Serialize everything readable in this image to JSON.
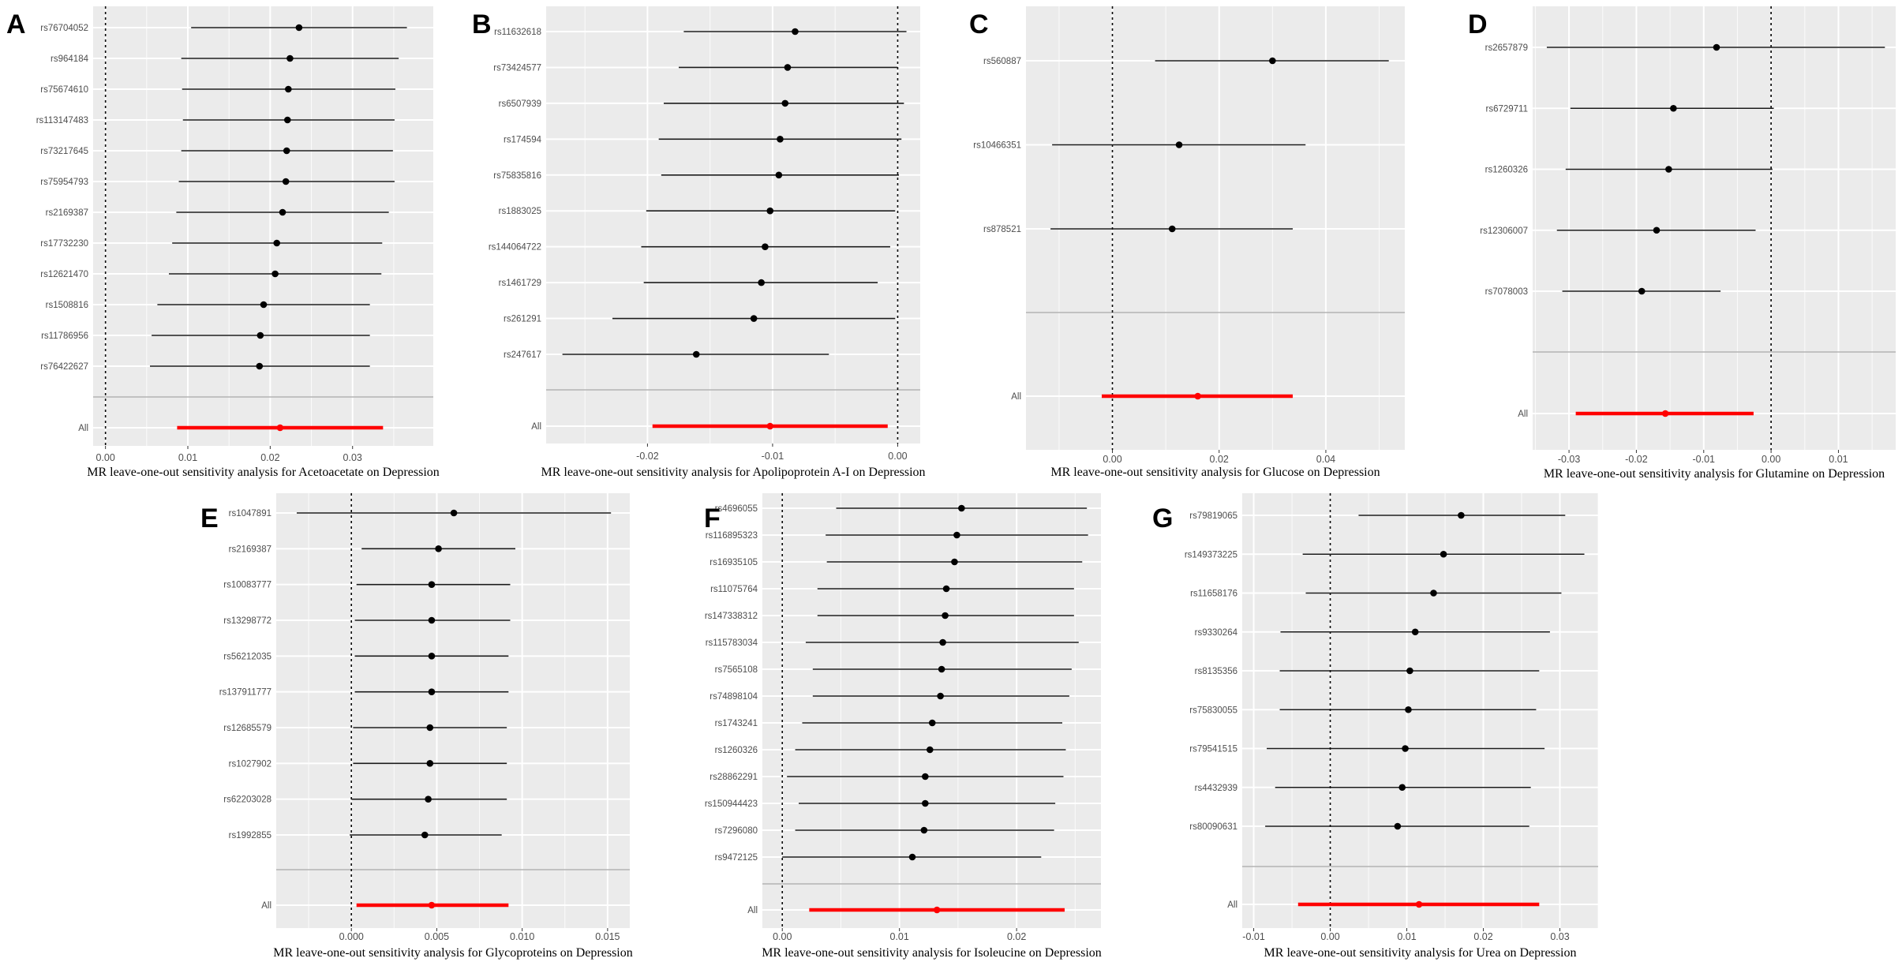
{
  "chart_data": [
    {
      "panel": "A",
      "type": "forest",
      "xlabel": "MR leave-one-out sensitivity analysis for Acetoacetate on Depression",
      "xlim": [
        -0.0015,
        0.0398
      ],
      "xticks": [
        0.0,
        0.01,
        0.02,
        0.03
      ],
      "xtick_labels": [
        "0.00",
        "0.01",
        "0.02",
        "0.03"
      ],
      "snps": [
        {
          "label": "rs76704052",
          "b": 0.0235,
          "lo": 0.0104,
          "hi": 0.0366
        },
        {
          "label": "rs964184",
          "b": 0.0224,
          "lo": 0.0092,
          "hi": 0.0356
        },
        {
          "label": "rs75674610",
          "b": 0.0222,
          "lo": 0.0093,
          "hi": 0.0352
        },
        {
          "label": "rs113147483",
          "b": 0.0221,
          "lo": 0.0094,
          "hi": 0.0351
        },
        {
          "label": "rs73217645",
          "b": 0.022,
          "lo": 0.0092,
          "hi": 0.0349
        },
        {
          "label": "rs75954793",
          "b": 0.0219,
          "lo": 0.0089,
          "hi": 0.0351
        },
        {
          "label": "rs2169387",
          "b": 0.0215,
          "lo": 0.0086,
          "hi": 0.0344
        },
        {
          "label": "rs17732230",
          "b": 0.0208,
          "lo": 0.0081,
          "hi": 0.0336
        },
        {
          "label": "rs12621470",
          "b": 0.0206,
          "lo": 0.0077,
          "hi": 0.0335
        },
        {
          "label": "rs1508816",
          "b": 0.0192,
          "lo": 0.0063,
          "hi": 0.0321
        },
        {
          "label": "rs11786956",
          "b": 0.0188,
          "lo": 0.0056,
          "hi": 0.0321
        },
        {
          "label": "rs76422627",
          "b": 0.0187,
          "lo": 0.0054,
          "hi": 0.0321
        }
      ],
      "overall": {
        "label": "All",
        "b": 0.0212,
        "lo": 0.0087,
        "hi": 0.0337
      }
    },
    {
      "panel": "B",
      "type": "forest",
      "xlabel": "MR leave-one-out sensitivity analysis for Apolipoprotein A-I on Depression",
      "xlim": [
        -0.0281,
        0.0018
      ],
      "xticks": [
        -0.02,
        -0.01,
        0.0
      ],
      "xtick_labels": [
        "-0.02",
        "-0.01",
        "0.00"
      ],
      "snps": [
        {
          "label": "rs11632618",
          "b": -0.0082,
          "lo": -0.0171,
          "hi": 0.0007
        },
        {
          "label": "rs73424577",
          "b": -0.0088,
          "lo": -0.0175,
          "hi": 0.0
        },
        {
          "label": "rs6507939",
          "b": -0.009,
          "lo": -0.0187,
          "hi": 0.0005
        },
        {
          "label": "rs174594",
          "b": -0.0094,
          "lo": -0.0191,
          "hi": 0.0003
        },
        {
          "label": "rs75835816",
          "b": -0.0095,
          "lo": -0.0189,
          "hi": 0.0001
        },
        {
          "label": "rs1883025",
          "b": -0.0102,
          "lo": -0.0201,
          "hi": -0.0002
        },
        {
          "label": "rs144064722",
          "b": -0.0106,
          "lo": -0.0205,
          "hi": -0.0006
        },
        {
          "label": "rs1461729",
          "b": -0.0109,
          "lo": -0.0203,
          "hi": -0.0016
        },
        {
          "label": "rs261291",
          "b": -0.0115,
          "lo": -0.0228,
          "hi": -0.0002
        },
        {
          "label": "rs247617",
          "b": -0.0161,
          "lo": -0.0268,
          "hi": -0.0055
        }
      ],
      "overall": {
        "label": "All",
        "b": -0.0102,
        "lo": -0.0196,
        "hi": -0.0008
      }
    },
    {
      "panel": "C",
      "type": "forest",
      "xlabel": "MR leave-one-out sensitivity analysis for Glucose on Depression",
      "xlim": [
        -0.0162,
        0.0548
      ],
      "xticks": [
        0.0,
        0.02,
        0.04
      ],
      "xtick_labels": [
        "0.00",
        "0.02",
        "0.04"
      ],
      "snps": [
        {
          "label": "rs560887",
          "b": 0.03,
          "lo": 0.008,
          "hi": 0.0518
        },
        {
          "label": "rs10466351",
          "b": 0.0125,
          "lo": -0.0113,
          "hi": 0.0362
        },
        {
          "label": "rs878521",
          "b": 0.0112,
          "lo": -0.0116,
          "hi": 0.0338
        }
      ],
      "overall": {
        "label": "All",
        "b": 0.016,
        "lo": -0.002,
        "hi": 0.0338
      }
    },
    {
      "panel": "D",
      "type": "forest",
      "xlabel": "MR leave-one-out sensitivity analysis for Glutamine on Depression",
      "xlim": [
        -0.0354,
        0.0185
      ],
      "xticks": [
        -0.03,
        -0.02,
        -0.01,
        0.0,
        0.01
      ],
      "xtick_labels": [
        "-0.03",
        "-0.02",
        "-0.01",
        "0.00",
        "0.01"
      ],
      "snps": [
        {
          "label": "rs2657879",
          "b": -0.0081,
          "lo": -0.0333,
          "hi": 0.0169
        },
        {
          "label": "rs6729711",
          "b": -0.0145,
          "lo": -0.0298,
          "hi": 0.0004
        },
        {
          "label": "rs1260326",
          "b": -0.0152,
          "lo": -0.0305,
          "hi": 0.0002
        },
        {
          "label": "rs12306007",
          "b": -0.017,
          "lo": -0.0318,
          "hi": -0.0023
        },
        {
          "label": "rs7078003",
          "b": -0.0192,
          "lo": -0.031,
          "hi": -0.0075
        }
      ],
      "overall": {
        "label": "All",
        "b": -0.0157,
        "lo": -0.029,
        "hi": -0.0026
      }
    },
    {
      "panel": "E",
      "type": "forest",
      "xlabel": "MR leave-one-out sensitivity analysis for Glycoproteins on Depression",
      "xlim": [
        -0.0044,
        0.0163
      ],
      "xticks": [
        0.0,
        0.005,
        0.01,
        0.015
      ],
      "xtick_labels": [
        "0.000",
        "0.005",
        "0.010",
        "0.015"
      ],
      "snps": [
        {
          "label": "rs1047891",
          "b": 0.006,
          "lo": -0.0032,
          "hi": 0.0152
        },
        {
          "label": "rs2169387",
          "b": 0.0051,
          "lo": 0.0006,
          "hi": 0.0096
        },
        {
          "label": "rs10083777",
          "b": 0.0047,
          "lo": 0.0003,
          "hi": 0.0093
        },
        {
          "label": "rs13298772",
          "b": 0.0047,
          "lo": 0.0002,
          "hi": 0.0093
        },
        {
          "label": "rs56212035",
          "b": 0.0047,
          "lo": 0.0002,
          "hi": 0.0092
        },
        {
          "label": "rs137911777",
          "b": 0.0047,
          "lo": 0.0002,
          "hi": 0.0092
        },
        {
          "label": "rs12685579",
          "b": 0.0046,
          "lo": 0.0001,
          "hi": 0.0091
        },
        {
          "label": "rs1027902",
          "b": 0.0046,
          "lo": 0.0001,
          "hi": 0.0091
        },
        {
          "label": "rs62203028",
          "b": 0.0045,
          "lo": 0.0,
          "hi": 0.0091
        },
        {
          "label": "rs1992855",
          "b": 0.0043,
          "lo": -0.0001,
          "hi": 0.0088
        }
      ],
      "overall": {
        "label": "All",
        "b": 0.0047,
        "lo": 0.0003,
        "hi": 0.0092
      }
    },
    {
      "panel": "F",
      "type": "forest",
      "xlabel": "MR leave-one-out sensitivity analysis for Isoleucine on Depression",
      "xlim": [
        -0.0017,
        0.0272
      ],
      "xticks": [
        0.0,
        0.01,
        0.02
      ],
      "xtick_labels": [
        "0.00",
        "0.01",
        "0.02"
      ],
      "snps": [
        {
          "label": "rs4696055",
          "b": 0.0153,
          "lo": 0.0046,
          "hi": 0.026
        },
        {
          "label": "rs116895323",
          "b": 0.0149,
          "lo": 0.0037,
          "hi": 0.0261
        },
        {
          "label": "rs16935105",
          "b": 0.0147,
          "lo": 0.0038,
          "hi": 0.0256
        },
        {
          "label": "rs11075764",
          "b": 0.014,
          "lo": 0.003,
          "hi": 0.0249
        },
        {
          "label": "rs147338312",
          "b": 0.0139,
          "lo": 0.003,
          "hi": 0.0249
        },
        {
          "label": "rs115783034",
          "b": 0.0137,
          "lo": 0.002,
          "hi": 0.0253
        },
        {
          "label": "rs7565108",
          "b": 0.0136,
          "lo": 0.0026,
          "hi": 0.0247
        },
        {
          "label": "rs74898104",
          "b": 0.0135,
          "lo": 0.0026,
          "hi": 0.0245
        },
        {
          "label": "rs1743241",
          "b": 0.0128,
          "lo": 0.0017,
          "hi": 0.0239
        },
        {
          "label": "rs1260326",
          "b": 0.0126,
          "lo": 0.0011,
          "hi": 0.0242
        },
        {
          "label": "rs28862291",
          "b": 0.0122,
          "lo": 0.0004,
          "hi": 0.024
        },
        {
          "label": "rs150944423",
          "b": 0.0122,
          "lo": 0.0014,
          "hi": 0.0233
        },
        {
          "label": "rs7296080",
          "b": 0.0121,
          "lo": 0.0011,
          "hi": 0.0232
        },
        {
          "label": "rs9472125",
          "b": 0.0111,
          "lo": 0.0,
          "hi": 0.0221
        }
      ],
      "overall": {
        "label": "All",
        "b": 0.0132,
        "lo": 0.0023,
        "hi": 0.0241
      }
    },
    {
      "panel": "G",
      "type": "forest",
      "xlabel": "MR leave-one-out sensitivity analysis for Urea on Depression",
      "xlim": [
        -0.0115,
        0.035
      ],
      "xticks": [
        -0.01,
        0.0,
        0.01,
        0.02,
        0.03
      ],
      "xtick_labels": [
        "-0.01",
        "0.00",
        "0.01",
        "0.02",
        "0.03"
      ],
      "snps": [
        {
          "label": "rs79819065",
          "b": 0.0171,
          "lo": 0.0037,
          "hi": 0.0307
        },
        {
          "label": "rs149373225",
          "b": 0.0148,
          "lo": -0.0036,
          "hi": 0.0332
        },
        {
          "label": "rs11658176",
          "b": 0.0135,
          "lo": -0.0032,
          "hi": 0.0302
        },
        {
          "label": "rs9330264",
          "b": 0.0111,
          "lo": -0.0065,
          "hi": 0.0287
        },
        {
          "label": "rs8135356",
          "b": 0.0104,
          "lo": -0.0066,
          "hi": 0.0273
        },
        {
          "label": "rs75830055",
          "b": 0.0102,
          "lo": -0.0066,
          "hi": 0.0269
        },
        {
          "label": "rs79541515",
          "b": 0.0098,
          "lo": -0.0083,
          "hi": 0.028
        },
        {
          "label": "rs4432939",
          "b": 0.0094,
          "lo": -0.0072,
          "hi": 0.0262
        },
        {
          "label": "rs80090631",
          "b": 0.0088,
          "lo": -0.0085,
          "hi": 0.026
        }
      ],
      "overall": {
        "label": "All",
        "b": 0.0116,
        "lo": -0.0042,
        "hi": 0.0273
      }
    }
  ]
}
